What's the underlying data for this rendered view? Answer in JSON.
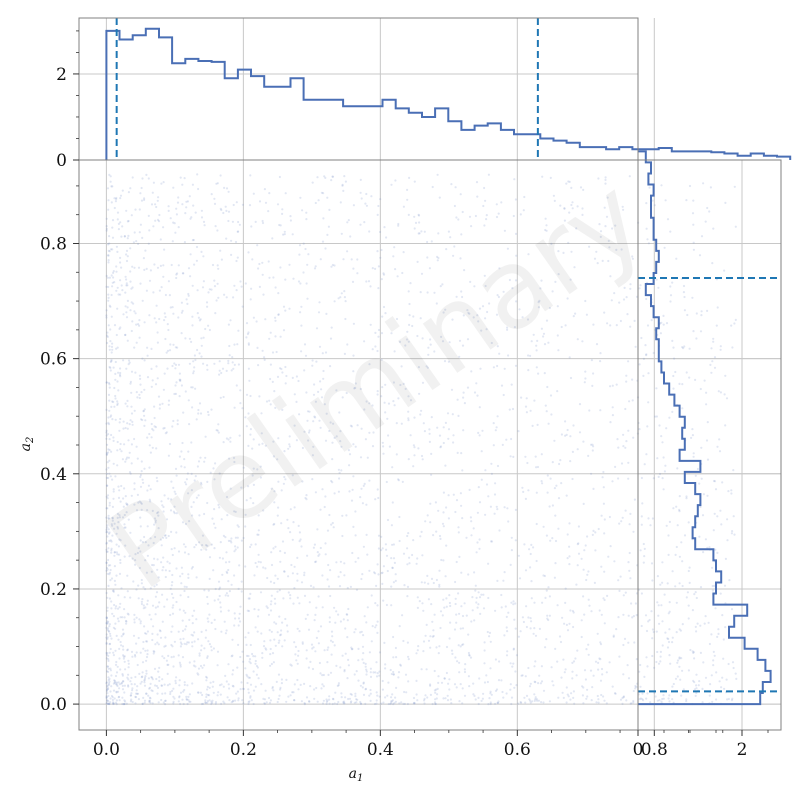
{
  "chart_data": {
    "type": "scatter",
    "watermark": "Preliminary",
    "xlabel": "a_1",
    "ylabel": "a_2",
    "colors": {
      "points": "#7b93c8",
      "hist": "#4a6fb5",
      "quantile": "#1f77b4",
      "grid": "#c8c8c8",
      "frame": "#808080"
    },
    "joint": {
      "xlim": [
        -0.04,
        0.985
      ],
      "ylim": [
        -0.045,
        0.945
      ],
      "xticks": [
        0.0,
        0.2,
        0.4,
        0.6,
        0.8
      ],
      "xtick_labels": [
        "0.0",
        "0.2",
        "0.4",
        "0.6",
        "0.8"
      ],
      "yticks": [
        0.0,
        0.2,
        0.4,
        0.6,
        0.8
      ],
      "ytick_labels": [
        "0.0",
        "0.2",
        "0.4",
        "0.6",
        "0.8"
      ],
      "grid": true,
      "n_points": 4000,
      "density_note": "points concentrated near a1 < 0.2 and a2 < 0.2, sparse towards 0.92"
    },
    "marginal_x": {
      "ylim": [
        0,
        3.3
      ],
      "yticks": [
        0,
        2
      ],
      "ytick_labels": [
        "0",
        "2"
      ],
      "bin_edges_start": 0.0,
      "bin_width": 0.0192,
      "counts": [
        3.0,
        2.8,
        2.9,
        3.05,
        2.85,
        2.25,
        2.35,
        2.3,
        2.28,
        1.9,
        2.1,
        1.95,
        1.7,
        1.7,
        1.9,
        1.4,
        1.4,
        1.4,
        1.25,
        1.25,
        1.25,
        1.4,
        1.2,
        1.1,
        1.0,
        1.2,
        0.9,
        0.7,
        0.8,
        0.85,
        0.7,
        0.6,
        0.6,
        0.5,
        0.45,
        0.4,
        0.3,
        0.3,
        0.25,
        0.3,
        0.25,
        0.25,
        0.28,
        0.2,
        0.2,
        0.2,
        0.18,
        0.15,
        0.1,
        0.15,
        0.1,
        0.08
      ],
      "quantiles": [
        0.015,
        0.63
      ]
    },
    "marginal_y": {
      "xlim": [
        0,
        2.75
      ],
      "xticks": [
        0,
        2
      ],
      "xtick_labels": [
        "0",
        "2"
      ],
      "bin_edges_start": 0.0,
      "bin_width": 0.0192,
      "counts": [
        2.35,
        2.4,
        2.55,
        2.45,
        2.3,
        2.05,
        1.75,
        1.85,
        2.1,
        1.45,
        1.5,
        1.6,
        1.5,
        1.45,
        1.1,
        1.05,
        1.1,
        1.15,
        1.2,
        1.1,
        0.9,
        1.2,
        0.8,
        0.9,
        0.85,
        0.9,
        0.8,
        0.7,
        0.6,
        0.5,
        0.45,
        0.4,
        0.4,
        0.35,
        0.4,
        0.3,
        0.25,
        0.15,
        0.3,
        0.35,
        0.4,
        0.35,
        0.3,
        0.3,
        0.25,
        0.25,
        0.3,
        0.2,
        0.25,
        0.15
      ],
      "quantiles": [
        0.022,
        0.74
      ]
    }
  }
}
